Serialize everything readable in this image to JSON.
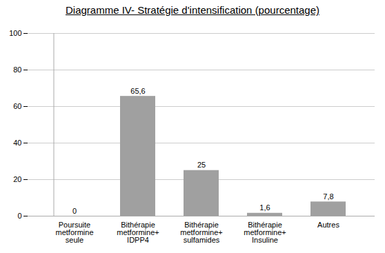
{
  "chart_data": {
    "type": "bar",
    "title": "Diagramme IV- Stratégie d'intensification (pourcentage)",
    "categories": [
      "Poursuite\nmetformine\nseule",
      "Bithérapie\nmetformine+\nIDPP4",
      "Bithérapie\nmetformine+\nsulfamides",
      "Bithérapie\nmetformine+\nInsuline",
      "Autres"
    ],
    "values": [
      0,
      65.6,
      25,
      1.6,
      7.8
    ],
    "value_labels": [
      "0",
      "65,6",
      "25",
      "1,6",
      "7,8"
    ],
    "color": "#a0a0a0",
    "ylim": [
      0,
      100
    ],
    "yticks": [
      0,
      20,
      40,
      60,
      80,
      100
    ],
    "grid": true,
    "data_labels": true
  }
}
